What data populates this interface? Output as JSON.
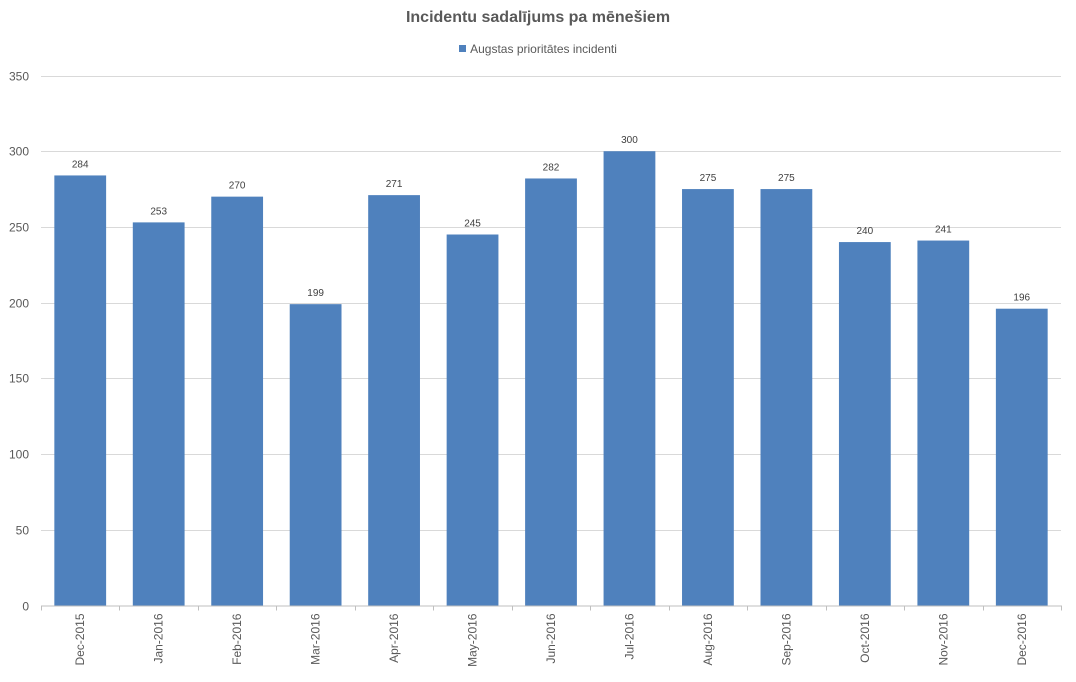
{
  "chart_data": {
    "type": "bar",
    "title": "Incidentu sadalījums pa mēnešiem",
    "categories": [
      "Dec-2015",
      "Jan-2016",
      "Feb-2016",
      "Mar-2016",
      "Apr-2016",
      "May-2016",
      "Jun-2016",
      "Jul-2016",
      "Aug-2016",
      "Sep-2016",
      "Oct-2016",
      "Nov-2016",
      "Dec-2016"
    ],
    "series": [
      {
        "name": "Augstas prioritātes incidenti",
        "values": [
          284,
          253,
          270,
          199,
          271,
          245,
          282,
          300,
          275,
          275,
          240,
          241,
          196
        ],
        "color": "#4f81bd"
      }
    ],
    "ylim": [
      0,
      350
    ],
    "yticks": [
      0,
      50,
      100,
      150,
      200,
      250,
      300,
      350
    ],
    "grid": true,
    "legend": "top-center",
    "data_labels": true
  }
}
